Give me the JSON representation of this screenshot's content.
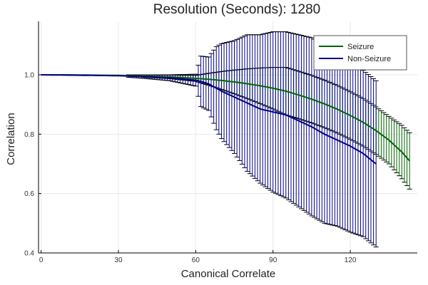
{
  "chart_data": {
    "type": "line",
    "title": "Resolution (Seconds): 1280",
    "xlabel": "Canonical Correlate",
    "ylabel": "Correlation",
    "xlim": [
      -1,
      146
    ],
    "ylim": [
      0.4,
      1.18
    ],
    "xticks": [
      0,
      30,
      60,
      90,
      120
    ],
    "yticks": [
      0.4,
      0.6,
      0.8,
      1.0
    ],
    "ytick_labels": [
      "0.4",
      "0.6",
      "0.8",
      "1.0"
    ],
    "grid": true,
    "legend_position": "top-right",
    "series": [
      {
        "name": "Seizure",
        "color": "#006400",
        "x": [
          0,
          10,
          20,
          30,
          40,
          50,
          60,
          65,
          70,
          75,
          80,
          85,
          90,
          95,
          100,
          105,
          110,
          115,
          120,
          125,
          130,
          135,
          140,
          143
        ],
        "y": [
          1.0,
          1.0,
          0.999,
          0.998,
          0.996,
          0.993,
          0.988,
          0.985,
          0.981,
          0.976,
          0.97,
          0.963,
          0.955,
          0.945,
          0.932,
          0.918,
          0.902,
          0.884,
          0.863,
          0.84,
          0.812,
          0.78,
          0.74,
          0.71
        ],
        "err": [
          0,
          0,
          0.001,
          0.002,
          0.004,
          0.006,
          0.01,
          0.02,
          0.03,
          0.04,
          0.05,
          0.06,
          0.07,
          0.08,
          0.08,
          0.08,
          0.08,
          0.08,
          0.08,
          0.08,
          0.08,
          0.08,
          0.09,
          0.095
        ]
      },
      {
        "name": "Non-Seizure",
        "color": "#00008b",
        "x": [
          0,
          10,
          20,
          30,
          40,
          50,
          60,
          62,
          65,
          68,
          70,
          75,
          80,
          85,
          90,
          95,
          100,
          105,
          110,
          115,
          120,
          125,
          130
        ],
        "y": [
          1.0,
          0.999,
          0.998,
          0.997,
          0.994,
          0.99,
          0.982,
          0.978,
          0.97,
          0.955,
          0.945,
          0.925,
          0.905,
          0.885,
          0.875,
          0.865,
          0.845,
          0.825,
          0.8,
          0.78,
          0.76,
          0.735,
          0.7
        ],
        "err": [
          0,
          0.001,
          0.002,
          0.003,
          0.006,
          0.01,
          0.02,
          0.085,
          0.09,
          0.14,
          0.16,
          0.19,
          0.23,
          0.25,
          0.27,
          0.28,
          0.29,
          0.3,
          0.3,
          0.29,
          0.29,
          0.28,
          0.28
        ]
      }
    ]
  }
}
